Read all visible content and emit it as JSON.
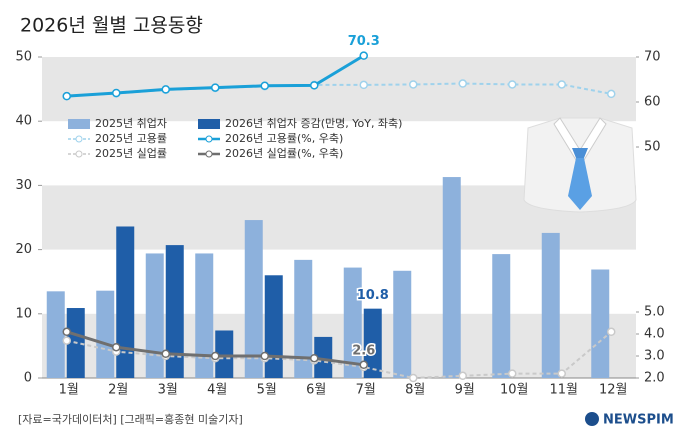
{
  "chart_data": {
    "type": "bar-line",
    "title": "2026년 월별 고용동향",
    "categories": [
      "1월",
      "2월",
      "3월",
      "4월",
      "5월",
      "6월",
      "7월",
      "8월",
      "9월",
      "10월",
      "11월",
      "12월"
    ],
    "ylim": [
      0,
      50
    ],
    "yticks": [
      0,
      10,
      20,
      30,
      40,
      50
    ],
    "y2lim": [
      50,
      70
    ],
    "y2ticks": [
      50,
      60,
      70
    ],
    "y3lim": [
      2.0,
      5.0
    ],
    "y3ticks": [
      {
        "value": 2.0,
        "label": "2.0"
      },
      {
        "value": 3.0,
        "label": "3.0"
      },
      {
        "value": 4.0,
        "label": "4.0"
      },
      {
        "value": 5.0,
        "label": "5.0"
      }
    ],
    "banded_background": true,
    "series": [
      {
        "name": "2025년 취업자",
        "kind": "bar",
        "color": "#8db1dc",
        "values": [
          13.5,
          13.6,
          19.4,
          19.4,
          24.6,
          18.4,
          17.2,
          16.7,
          31.3,
          19.3,
          22.6,
          16.9
        ]
      },
      {
        "name": "2026년 취업자 증감(만명, YoY, 좌축)",
        "kind": "bar",
        "color": "#1f5ea8",
        "values": [
          10.9,
          23.6,
          20.7,
          7.4,
          16.0,
          6.4,
          10.8,
          null,
          null,
          null,
          null,
          null
        ],
        "label_last_point": true
      },
      {
        "name": "2025년 고용률",
        "kind": "line",
        "axis": "y2",
        "color": "#9fd2ec",
        "dash": true,
        "values": [
          61.3,
          61.9,
          62.7,
          63.1,
          63.5,
          63.8,
          63.8,
          63.9,
          64.1,
          63.9,
          63.9,
          61.8
        ]
      },
      {
        "name": "2026년 고용률(%, 우축)",
        "kind": "line",
        "axis": "y2",
        "color": "#1aa0d8",
        "values": [
          61.3,
          62.0,
          62.8,
          63.2,
          63.6,
          63.7,
          70.3,
          null,
          null,
          null,
          null,
          null
        ],
        "label_last_point": true
      },
      {
        "name": "2025년 실업률",
        "kind": "line",
        "axis": "y3",
        "color": "#c9c9c9",
        "dash": true,
        "values": [
          3.7,
          3.2,
          3.0,
          2.9,
          2.9,
          2.8,
          2.5,
          2.0,
          2.1,
          2.2,
          2.2,
          4.1
        ]
      },
      {
        "name": "2026년 실업률(%, 우축)",
        "kind": "line",
        "axis": "y3",
        "color": "#6f6f6f",
        "values": [
          4.1,
          3.4,
          3.1,
          3.0,
          3.0,
          2.9,
          2.6,
          null,
          null,
          null,
          null,
          null
        ],
        "label_last_point": true
      }
    ],
    "source": "[자료=국가데이터처] [그래픽=홍종현 미술기자]",
    "logo": "NEWSPIM"
  }
}
